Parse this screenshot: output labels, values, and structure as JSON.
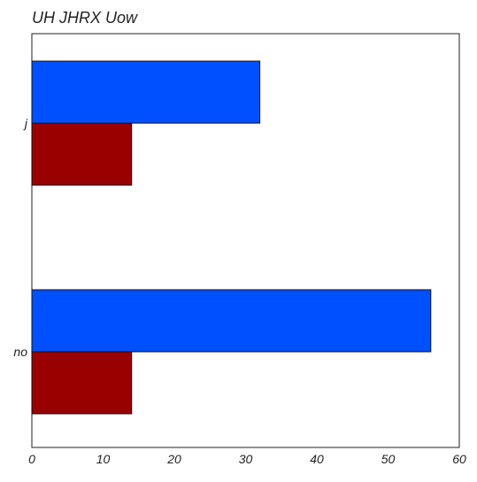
{
  "chart_data": {
    "type": "bar",
    "orientation": "horizontal",
    "title": "UH JHRX Uow",
    "xlabel": "",
    "ylabel": "",
    "categories": [
      "j",
      "no"
    ],
    "series": [
      {
        "values": [
          32,
          56
        ],
        "color": "#0050ff"
      },
      {
        "values": [
          14,
          14
        ],
        "color": "#990000"
      }
    ],
    "xlim": [
      0,
      60
    ],
    "xticks": [
      0,
      10,
      20,
      30,
      40,
      50,
      60
    ],
    "grid": false,
    "legend": "none"
  }
}
